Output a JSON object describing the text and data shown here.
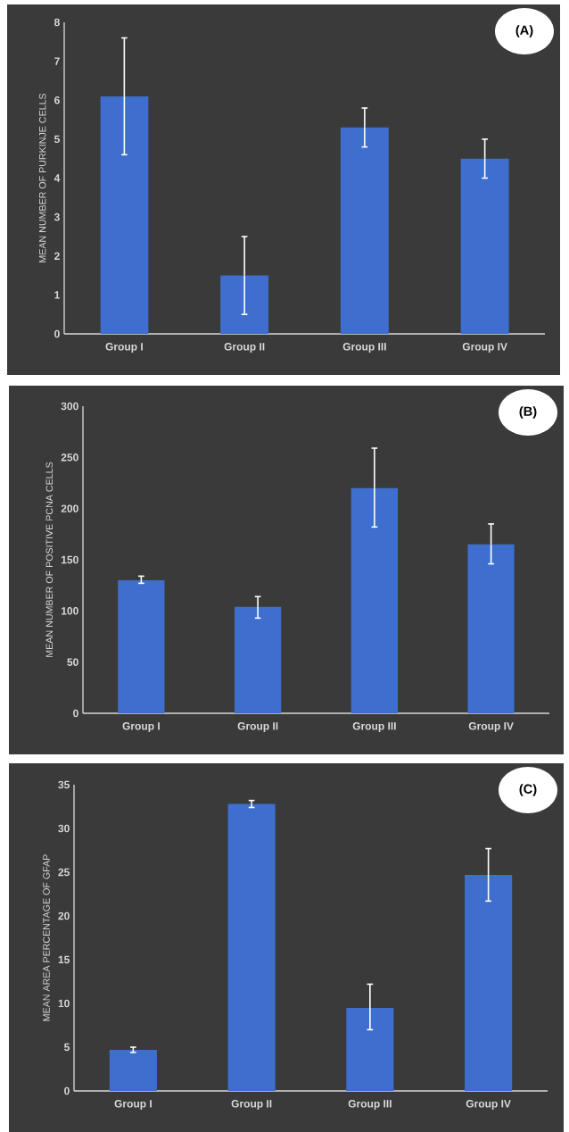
{
  "chart_data": [
    {
      "type": "bar",
      "title": "(A)",
      "ylabel": "MEAN NUMBER OF PURKINJE CELLS",
      "categories": [
        "Group I",
        "Group II",
        "Group III",
        "Group IV"
      ],
      "values": [
        6.1,
        1.5,
        5.3,
        4.5
      ],
      "errors": [
        1.5,
        1.0,
        0.5,
        0.5
      ],
      "color": "#3e6fce",
      "ylim": [
        0,
        8
      ],
      "yticks": [
        0,
        1,
        2,
        3,
        4,
        5,
        6,
        7,
        8
      ]
    },
    {
      "type": "bar",
      "title": "(B)",
      "ylabel": "MEAN NUMBER OF POSITIVE PCNA CELLS",
      "categories": [
        "Group I",
        "Group II",
        "Group III",
        "Group IV"
      ],
      "values": [
        130,
        104,
        220,
        165
      ],
      "errors": [
        [
          127,
          134
        ],
        [
          93,
          114
        ],
        [
          182,
          259
        ],
        [
          146,
          185
        ]
      ],
      "color": "#3e6fce",
      "ylim": [
        0,
        300
      ],
      "yticks": [
        0,
        50,
        100,
        150,
        200,
        250,
        300
      ]
    },
    {
      "type": "bar",
      "title": "(C)",
      "ylabel": "MEAN AREA PERCENTAGE OF GFAP",
      "categories": [
        "Group I",
        "Group II",
        "Group III",
        "Group IV"
      ],
      "values": [
        4.7,
        32.8,
        9.5,
        24.7
      ],
      "errors": [
        0.3,
        0.4,
        [
          7.0,
          12.2
        ],
        3.0
      ],
      "color": "#3e6fce",
      "ylim": [
        0,
        35
      ],
      "yticks": [
        0,
        5,
        10,
        15,
        20,
        25,
        30,
        35
      ]
    }
  ]
}
